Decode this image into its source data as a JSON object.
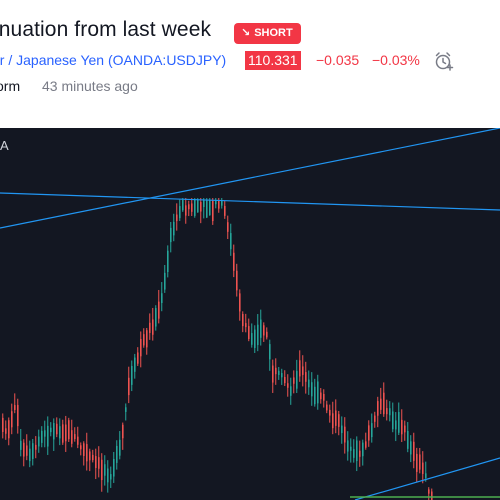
{
  "idea": {
    "title": "inuation from last week",
    "badge": {
      "label": "SHORT",
      "color": "#f23645"
    },
    "symbol": "ar / Japanese Yen (OANDA:USDJPY)",
    "price": "110.331",
    "change": "−0.035",
    "change_pct": "−0.03%",
    "alarm_icon": "alarm-clock-plus-icon",
    "author": "orm",
    "published": "43 minutes ago"
  },
  "chart": {
    "legend_fragment": "A",
    "background": "#131722",
    "up_color": "#26a69a",
    "down_color": "#ef5350",
    "trendline_color": "#2196f3",
    "support_color": "#4caf50"
  }
}
